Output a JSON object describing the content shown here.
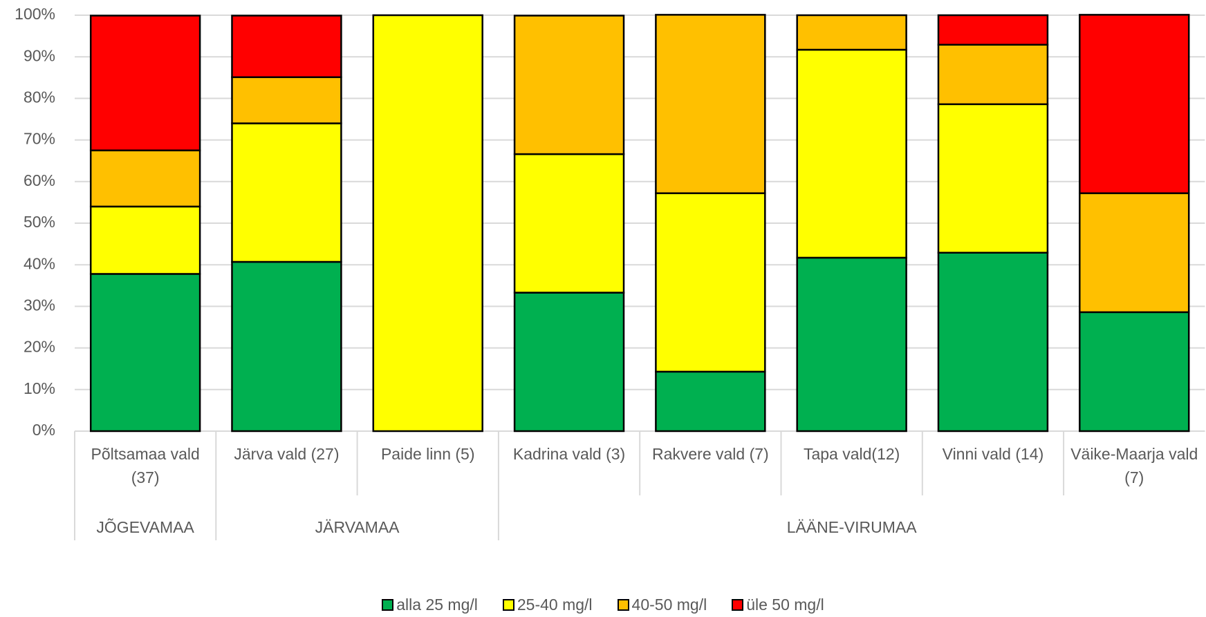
{
  "chart_data": {
    "type": "stacked_bar",
    "categories": [
      "Põltsamaa vald (37)",
      "Järva vald (27)",
      "Paide linn (5)",
      "Kadrina vald (3)",
      "Rakvere vald (7)",
      "Tapa vald(12)",
      "Vinni vald (14)",
      "Väike-Maarja vald (7)"
    ],
    "category_groups": [
      "JÕGEVAMAA",
      "JÄRVAMAA",
      "JÄRVAMAA",
      "LÄÄNE-VIRUMAA",
      "LÄÄNE-VIRUMAA",
      "LÄÄNE-VIRUMAA",
      "LÄÄNE-VIRUMAA",
      "LÄÄNE-VIRUMAA"
    ],
    "series": [
      {
        "name": "alla 25 mg/l",
        "color": "#00b050",
        "values": [
          37.8,
          40.7,
          0,
          33.3,
          14.3,
          41.7,
          42.9,
          28.6
        ]
      },
      {
        "name": "25-40 mg/l",
        "color": "#ffff00",
        "values": [
          16.2,
          33.3,
          100,
          33.3,
          42.9,
          50,
          35.7,
          0
        ]
      },
      {
        "name": "40-50 mg/l",
        "color": "#ffc000",
        "values": [
          13.5,
          11.1,
          0,
          33.3,
          42.9,
          8.3,
          14.3,
          28.6
        ]
      },
      {
        "name": "üle 50 mg/l",
        "color": "#ff0000",
        "values": [
          32.4,
          14.8,
          0,
          0,
          0,
          0,
          7.1,
          42.9
        ]
      }
    ],
    "ylim": [
      0,
      100
    ],
    "yticks": [
      {
        "value": 0,
        "label": "0%"
      },
      {
        "value": 10,
        "label": "10%"
      },
      {
        "value": 20,
        "label": "20%"
      },
      {
        "value": 30,
        "label": "30%"
      },
      {
        "value": 40,
        "label": "40%"
      },
      {
        "value": 50,
        "label": "50%"
      },
      {
        "value": 60,
        "label": "60%"
      },
      {
        "value": 70,
        "label": "70%"
      },
      {
        "value": 80,
        "label": "80%"
      },
      {
        "value": 90,
        "label": "90%"
      },
      {
        "value": 100,
        "label": "100%"
      }
    ],
    "grid": true,
    "legend": "bottom"
  }
}
